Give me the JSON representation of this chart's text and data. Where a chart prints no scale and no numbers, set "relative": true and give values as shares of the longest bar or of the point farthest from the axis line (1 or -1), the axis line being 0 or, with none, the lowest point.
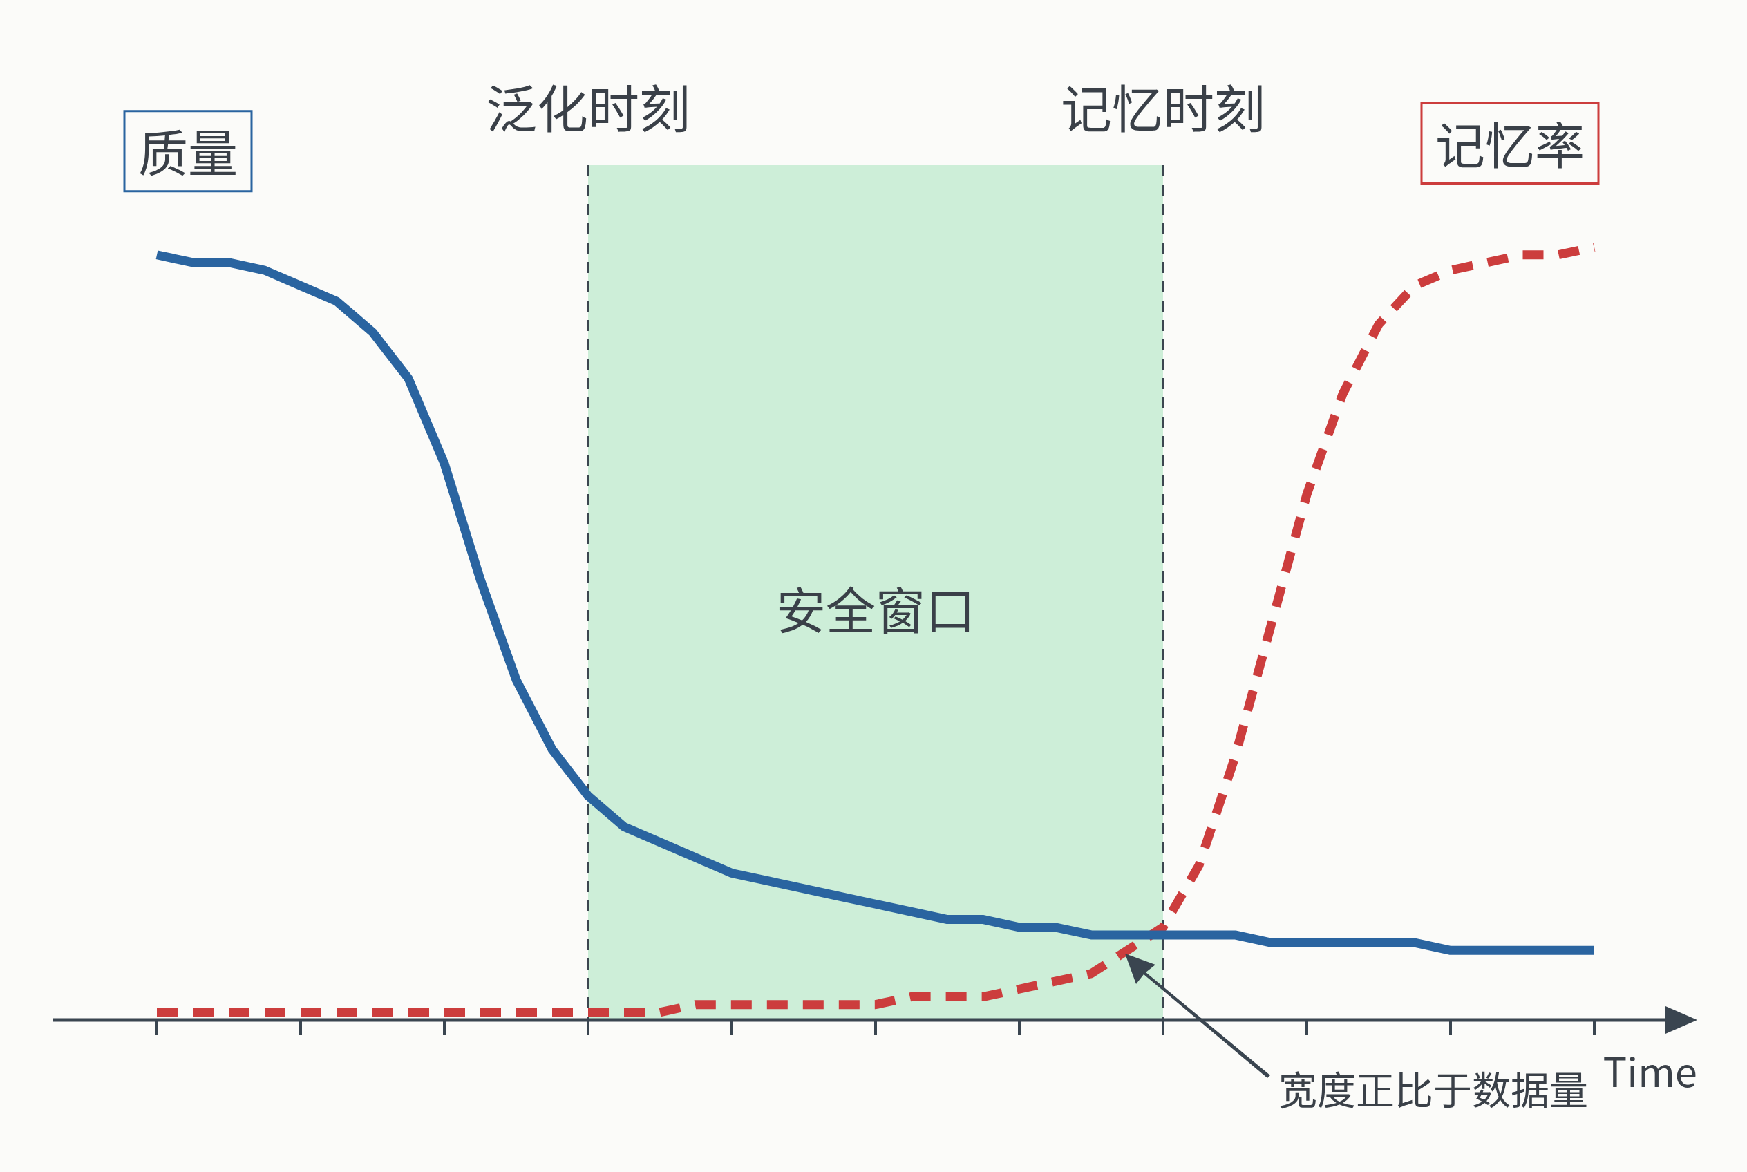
{
  "chart_data": {
    "type": "line",
    "relative": true,
    "xlabel": "Time",
    "legend": false,
    "grid": false,
    "marker": "none",
    "categories": [
      null,
      null,
      null,
      null,
      null,
      null,
      null,
      null,
      null,
      null,
      null,
      null,
      null,
      null,
      null,
      null,
      null,
      null,
      null,
      null,
      null,
      null,
      null,
      null,
      null,
      null,
      null,
      null,
      null,
      null,
      null,
      null,
      null,
      null,
      null,
      null,
      null,
      null,
      null,
      null,
      null
    ],
    "series": [
      {
        "name": "质量",
        "color": "#2a64a0",
        "line_style": "solid",
        "values": [
          0.99,
          0.98,
          0.98,
          0.97,
          0.95,
          0.93,
          0.89,
          0.83,
          0.72,
          0.57,
          0.44,
          0.35,
          0.29,
          0.25,
          0.23,
          0.21,
          0.19,
          0.18,
          0.17,
          0.16,
          0.15,
          0.14,
          0.13,
          0.13,
          0.12,
          0.12,
          0.11,
          0.11,
          0.11,
          0.11,
          0.11,
          0.1,
          0.1,
          0.1,
          0.1,
          0.1,
          0.09,
          0.09,
          0.09,
          0.09,
          0.09
        ]
      },
      {
        "name": "记忆率",
        "color": "#cc3d3d",
        "line_style": "dashed",
        "values": [
          0.01,
          0.01,
          0.01,
          0.01,
          0.01,
          0.01,
          0.01,
          0.01,
          0.01,
          0.01,
          0.01,
          0.01,
          0.01,
          0.01,
          0.01,
          0.02,
          0.02,
          0.02,
          0.02,
          0.02,
          0.02,
          0.03,
          0.03,
          0.03,
          0.04,
          0.05,
          0.06,
          0.09,
          0.12,
          0.2,
          0.34,
          0.51,
          0.68,
          0.81,
          0.9,
          0.95,
          0.97,
          0.98,
          0.99,
          0.99,
          1
        ]
      }
    ],
    "annotations": [
      "泛化时刻",
      "记忆时刻",
      "安全窗口",
      "宽度正比于数据量"
    ]
  }
}
